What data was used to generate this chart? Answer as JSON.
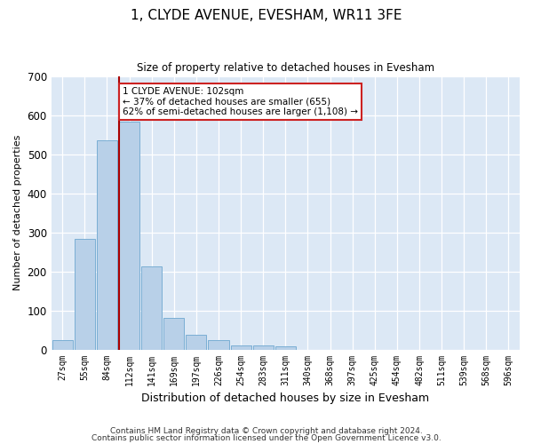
{
  "title": "1, CLYDE AVENUE, EVESHAM, WR11 3FE",
  "subtitle": "Size of property relative to detached houses in Evesham",
  "xlabel": "Distribution of detached houses by size in Evesham",
  "ylabel": "Number of detached properties",
  "bar_labels": [
    "27sqm",
    "55sqm",
    "84sqm",
    "112sqm",
    "141sqm",
    "169sqm",
    "197sqm",
    "226sqm",
    "254sqm",
    "283sqm",
    "311sqm",
    "340sqm",
    "368sqm",
    "397sqm",
    "425sqm",
    "454sqm",
    "482sqm",
    "511sqm",
    "539sqm",
    "568sqm",
    "596sqm"
  ],
  "bar_values": [
    25,
    284,
    535,
    582,
    212,
    80,
    38,
    24,
    10,
    10,
    7,
    0,
    0,
    0,
    0,
    0,
    0,
    0,
    0,
    0,
    0
  ],
  "bar_color": "#b8d0e8",
  "bar_edge_color": "#7aaed4",
  "marker_line_color": "#aa0000",
  "annotation_text": "1 CLYDE AVENUE: 102sqm\n← 37% of detached houses are smaller (655)\n62% of semi-detached houses are larger (1,108) →",
  "annotation_box_facecolor": "#ffffff",
  "annotation_box_edgecolor": "#cc2222",
  "ylim": [
    0,
    700
  ],
  "yticks": [
    0,
    100,
    200,
    300,
    400,
    500,
    600,
    700
  ],
  "plot_bg_color": "#dce8f5",
  "fig_bg_color": "#ffffff",
  "footer_line1": "Contains HM Land Registry data © Crown copyright and database right 2024.",
  "footer_line2": "Contains public sector information licensed under the Open Government Licence v3.0."
}
